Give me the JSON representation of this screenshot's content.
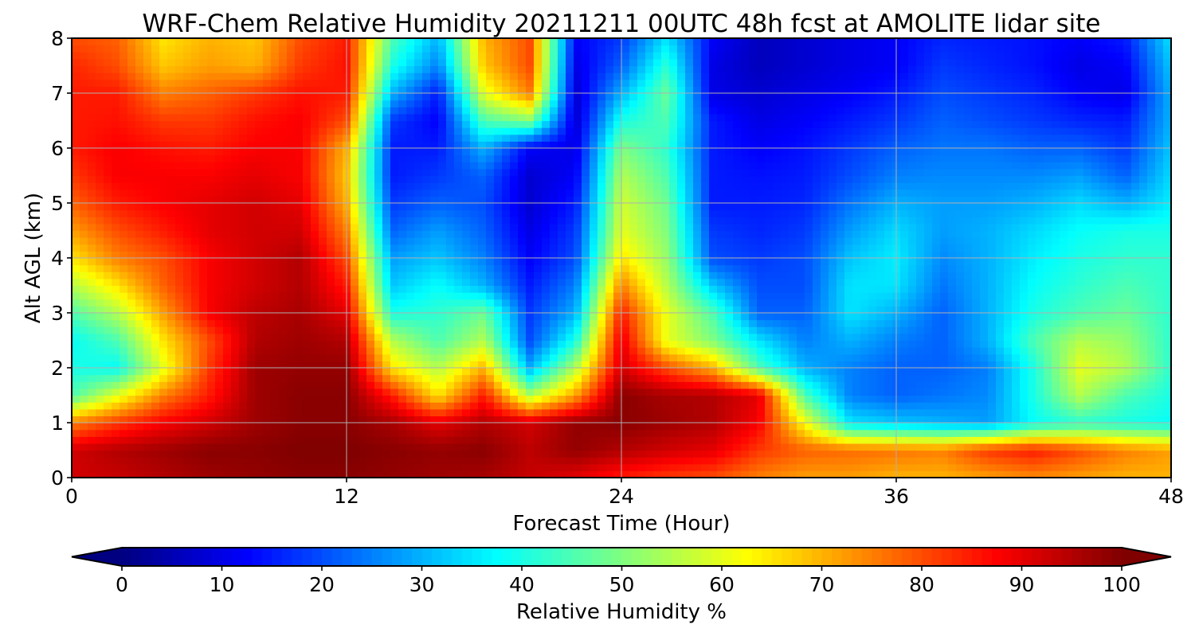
{
  "chart_data": {
    "type": "heatmap",
    "title": "WRF-Chem Relative Humidity 20211211 00UTC 48h fcst at AMOLITE lidar site",
    "xlabel": "Forecast Time (Hour)",
    "ylabel": "Alt AGL (km)",
    "xlim": [
      0,
      48
    ],
    "ylim": [
      0,
      8
    ],
    "x_ticks": [
      "0",
      "12",
      "24",
      "36",
      "48"
    ],
    "y_ticks": [
      "0",
      "1",
      "2",
      "3",
      "4",
      "5",
      "6",
      "7",
      "8"
    ],
    "grid": true,
    "x": [
      0,
      2,
      4,
      6,
      8,
      10,
      12,
      14,
      16,
      18,
      20,
      22,
      24,
      26,
      28,
      30,
      32,
      34,
      36,
      38,
      40,
      42,
      44,
      46,
      48
    ],
    "y": [
      0,
      0.5,
      1,
      1.5,
      2,
      2.5,
      3,
      3.5,
      4,
      4.5,
      5,
      5.5,
      6,
      6.5,
      7,
      7.5,
      8
    ],
    "z": [
      [
        92,
        93,
        95,
        97,
        98,
        99,
        99,
        98,
        97,
        96,
        93,
        90,
        85,
        82,
        80,
        75,
        72,
        72,
        70,
        70,
        72,
        74,
        72,
        70,
        70
      ],
      [
        92,
        95,
        97,
        99,
        99,
        100,
        100,
        99,
        98,
        99,
        94,
        98,
        95,
        92,
        90,
        82,
        78,
        77,
        76,
        75,
        82,
        85,
        80,
        75,
        72
      ],
      [
        75,
        82,
        88,
        92,
        97,
        99,
        99,
        96,
        90,
        95,
        92,
        98,
        99,
        97,
        95,
        88,
        62,
        35,
        32,
        30,
        28,
        38,
        42,
        40,
        38
      ],
      [
        45,
        60,
        75,
        85,
        97,
        99,
        99,
        85,
        65,
        85,
        55,
        72,
        99,
        96,
        95,
        90,
        45,
        25,
        22,
        24,
        26,
        40,
        55,
        45,
        40
      ],
      [
        40,
        38,
        60,
        82,
        97,
        98,
        98,
        65,
        55,
        70,
        30,
        55,
        92,
        80,
        70,
        45,
        30,
        25,
        22,
        22,
        25,
        40,
        60,
        55,
        42
      ],
      [
        38,
        45,
        65,
        80,
        95,
        97,
        95,
        55,
        45,
        55,
        20,
        40,
        90,
        60,
        50,
        35,
        25,
        30,
        25,
        22,
        30,
        45,
        55,
        52,
        42
      ],
      [
        45,
        55,
        72,
        88,
        94,
        96,
        90,
        40,
        42,
        48,
        18,
        30,
        85,
        60,
        45,
        22,
        22,
        35,
        30,
        22,
        30,
        40,
        45,
        48,
        42
      ],
      [
        55,
        65,
        78,
        88,
        92,
        95,
        85,
        32,
        38,
        30,
        15,
        25,
        75,
        55,
        32,
        20,
        20,
        35,
        35,
        24,
        30,
        38,
        42,
        45,
        42
      ],
      [
        65,
        75,
        80,
        88,
        92,
        95,
        80,
        28,
        32,
        25,
        12,
        20,
        65,
        52,
        20,
        18,
        20,
        32,
        36,
        26,
        30,
        36,
        40,
        42,
        42
      ],
      [
        72,
        80,
        85,
        90,
        92,
        92,
        75,
        22,
        28,
        22,
        10,
        18,
        60,
        50,
        18,
        16,
        18,
        28,
        34,
        28,
        30,
        34,
        38,
        40,
        40
      ],
      [
        78,
        85,
        88,
        90,
        92,
        90,
        70,
        18,
        22,
        20,
        8,
        15,
        58,
        48,
        15,
        15,
        16,
        24,
        30,
        28,
        28,
        30,
        34,
        30,
        36
      ],
      [
        82,
        88,
        88,
        88,
        90,
        88,
        68,
        15,
        18,
        22,
        8,
        12,
        55,
        45,
        15,
        14,
        15,
        20,
        25,
        26,
        26,
        26,
        28,
        22,
        34
      ],
      [
        85,
        88,
        86,
        85,
        88,
        88,
        70,
        15,
        15,
        30,
        12,
        10,
        50,
        42,
        15,
        12,
        14,
        18,
        22,
        24,
        24,
        22,
        22,
        18,
        32
      ],
      [
        85,
        86,
        82,
        82,
        86,
        88,
        80,
        18,
        12,
        45,
        50,
        8,
        40,
        45,
        15,
        10,
        12,
        15,
        18,
        22,
        20,
        18,
        16,
        15,
        30
      ],
      [
        85,
        85,
        75,
        78,
        82,
        86,
        85,
        30,
        15,
        60,
        75,
        8,
        30,
        48,
        10,
        8,
        10,
        12,
        15,
        20,
        18,
        16,
        12,
        10,
        30
      ],
      [
        84,
        80,
        68,
        72,
        70,
        82,
        86,
        40,
        25,
        68,
        80,
        10,
        22,
        42,
        10,
        6,
        8,
        10,
        12,
        18,
        16,
        14,
        10,
        12,
        32
      ],
      [
        80,
        78,
        65,
        70,
        68,
        80,
        85,
        45,
        30,
        70,
        80,
        12,
        18,
        35,
        12,
        6,
        8,
        10,
        12,
        16,
        15,
        14,
        12,
        15,
        35
      ]
    ],
    "colorbar": {
      "label": "Relative Humidity %",
      "range": [
        0,
        100
      ],
      "ticks": [
        "0",
        "10",
        "20",
        "30",
        "40",
        "50",
        "60",
        "70",
        "80",
        "90",
        "100"
      ],
      "colormap": "jet",
      "extend": "both"
    }
  }
}
